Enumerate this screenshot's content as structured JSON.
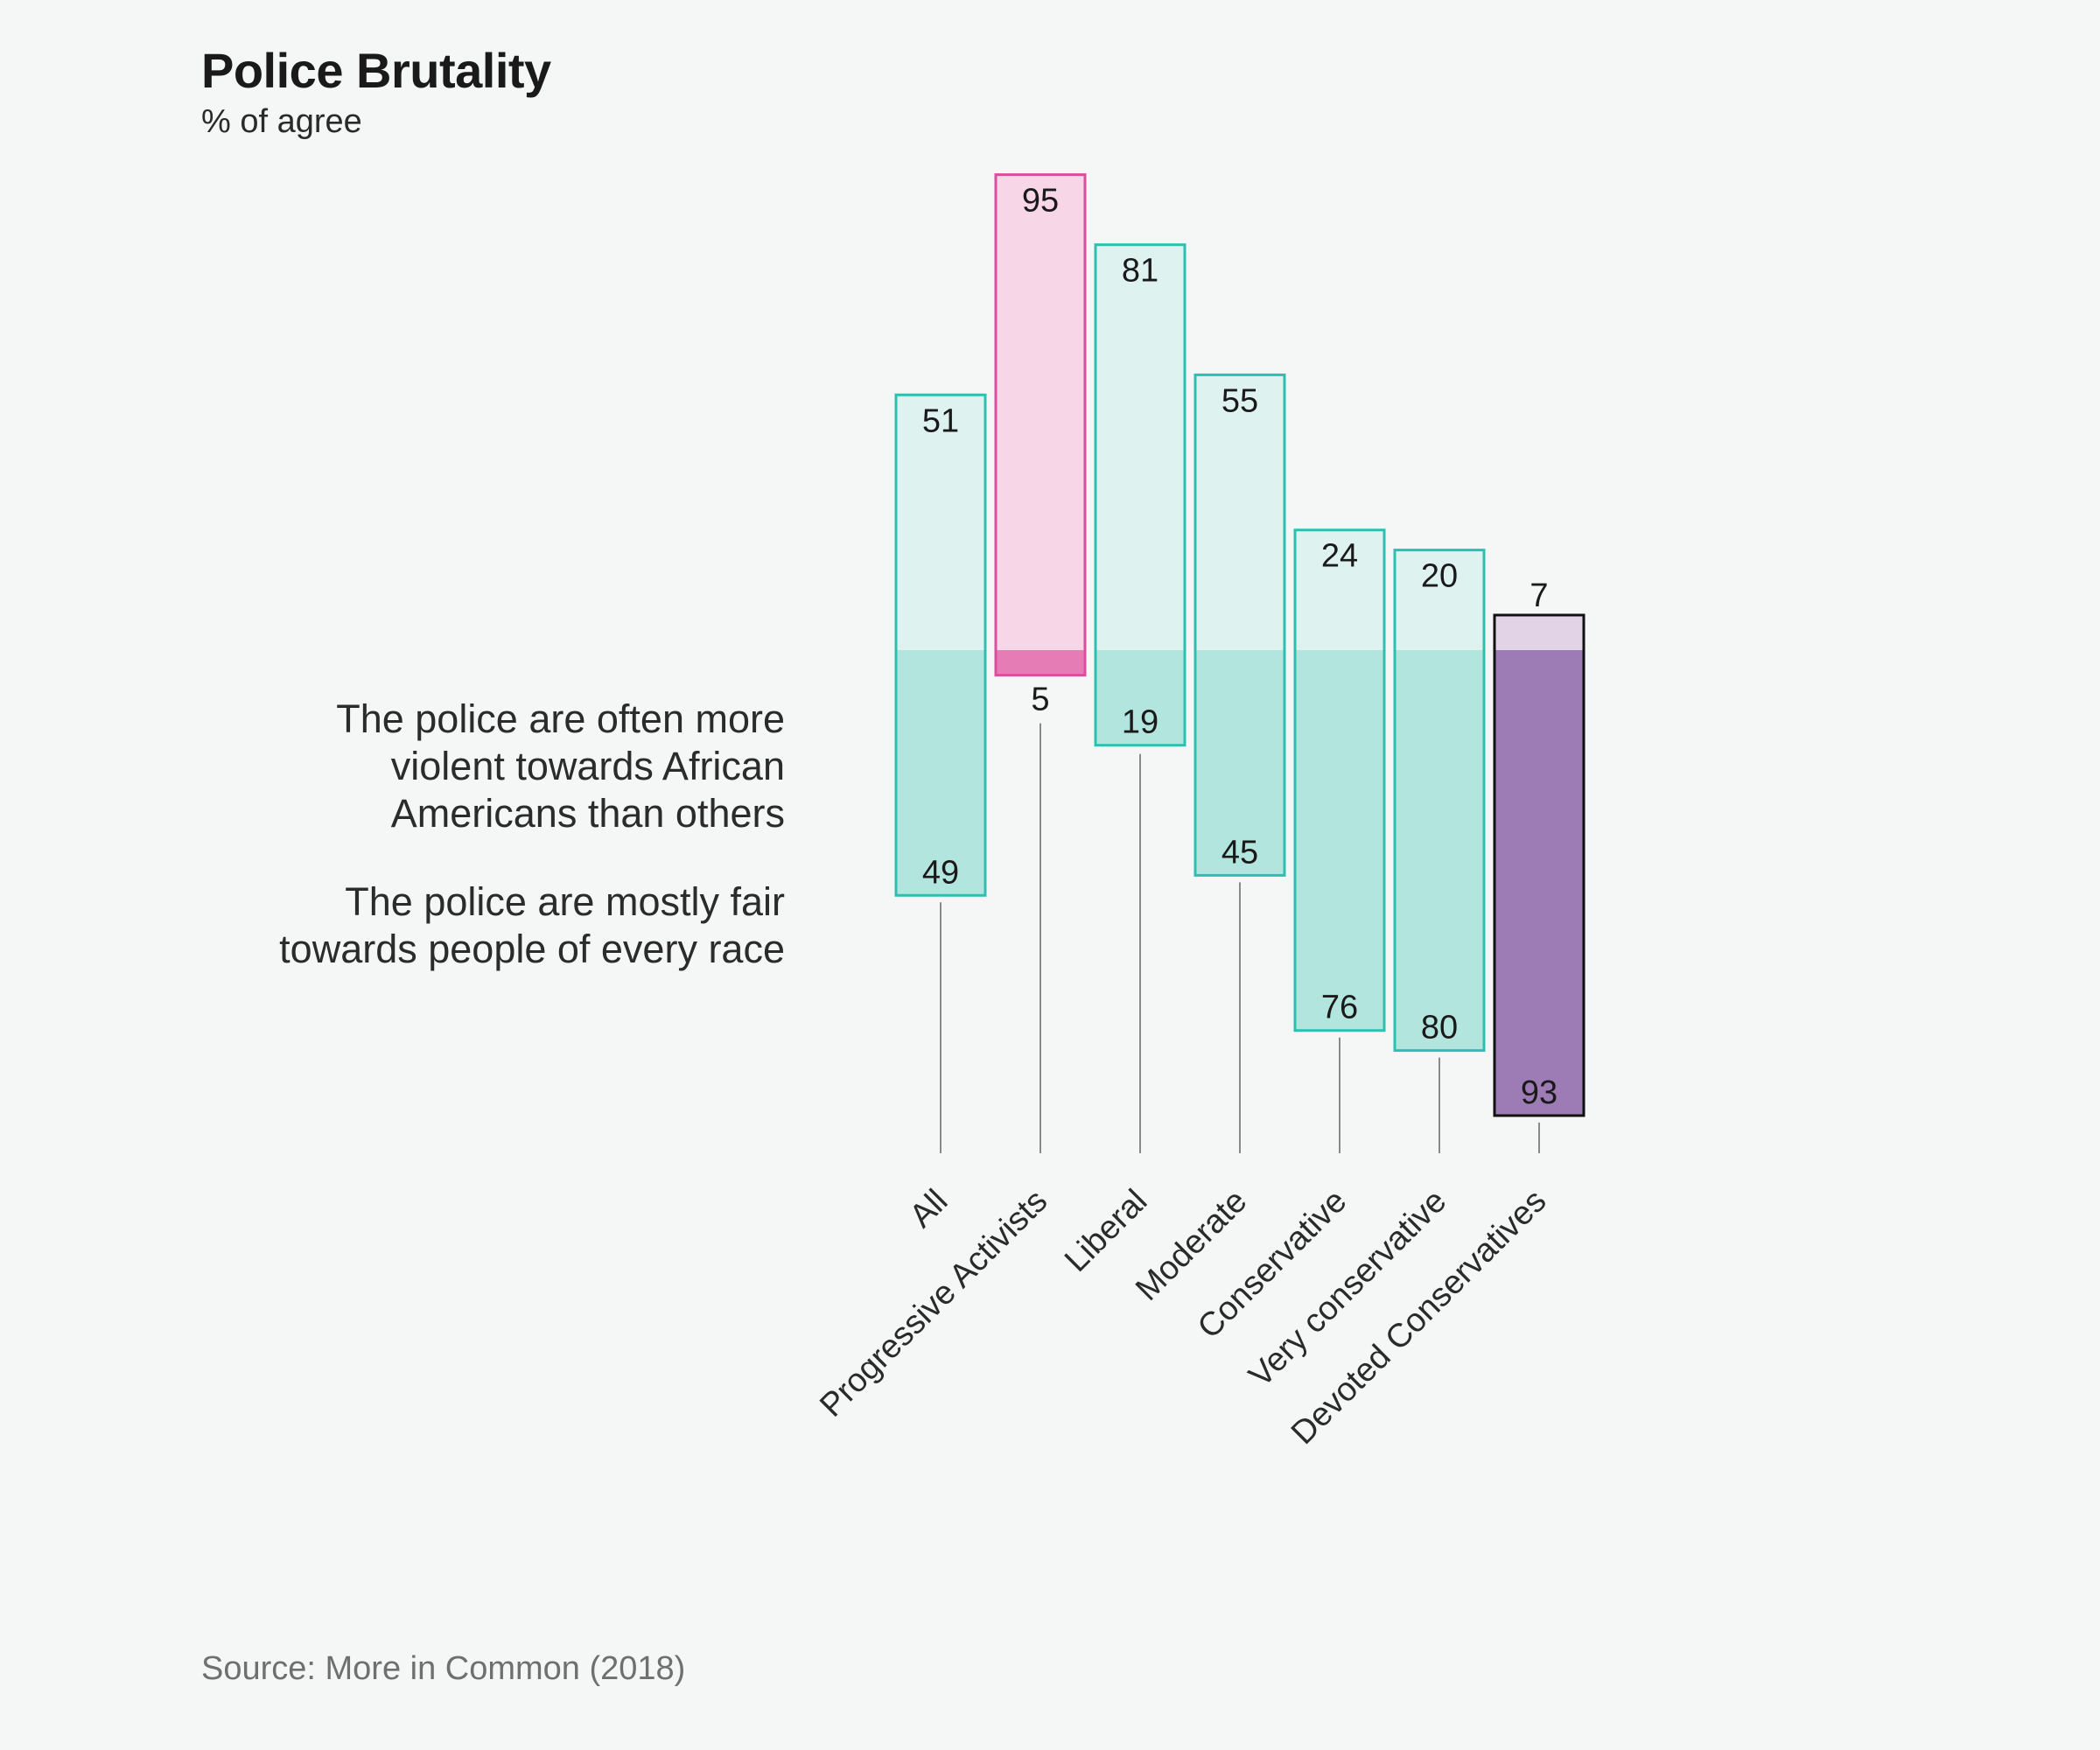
{
  "title": "Police Brutality",
  "subtitle": "% of agree",
  "legend": {
    "top": "The police are often more violent towards African Americans than others",
    "bottom": "The police are mostly fair towards people of every race"
  },
  "source": "Source: More in Common (2018)",
  "colors": {
    "teal_stroke": "#2dbfb0",
    "teal_light": "#def3f0",
    "teal_dark": "#b3e5df",
    "pink_stroke": "#d94f9f",
    "pink_light": "#f7d6e8",
    "pink_dark": "#e57cb6",
    "purple_stroke": "#111111",
    "purple_light": "#e2d3e6",
    "purple_dark": "#9d7bb5",
    "stem": "#8a8a8a"
  },
  "chart_data": {
    "type": "bar",
    "title": "Police Brutality",
    "subtitle": "% of agree",
    "categories": [
      "All",
      "Progressive Activists",
      "Liberal",
      "Moderate",
      "Conservative",
      "Very conservative",
      "Devoted Conservatives"
    ],
    "series": [
      {
        "name": "The police are often more violent towards African Americans than others",
        "values": [
          51,
          95,
          81,
          55,
          24,
          20,
          7
        ]
      },
      {
        "name": "The police are mostly fair towards people of every race",
        "values": [
          49,
          5,
          19,
          45,
          76,
          80,
          93
        ]
      }
    ],
    "color_groups": [
      "teal",
      "pink",
      "teal",
      "teal",
      "teal",
      "teal",
      "purple"
    ],
    "ylim": [
      0,
      100
    ]
  }
}
